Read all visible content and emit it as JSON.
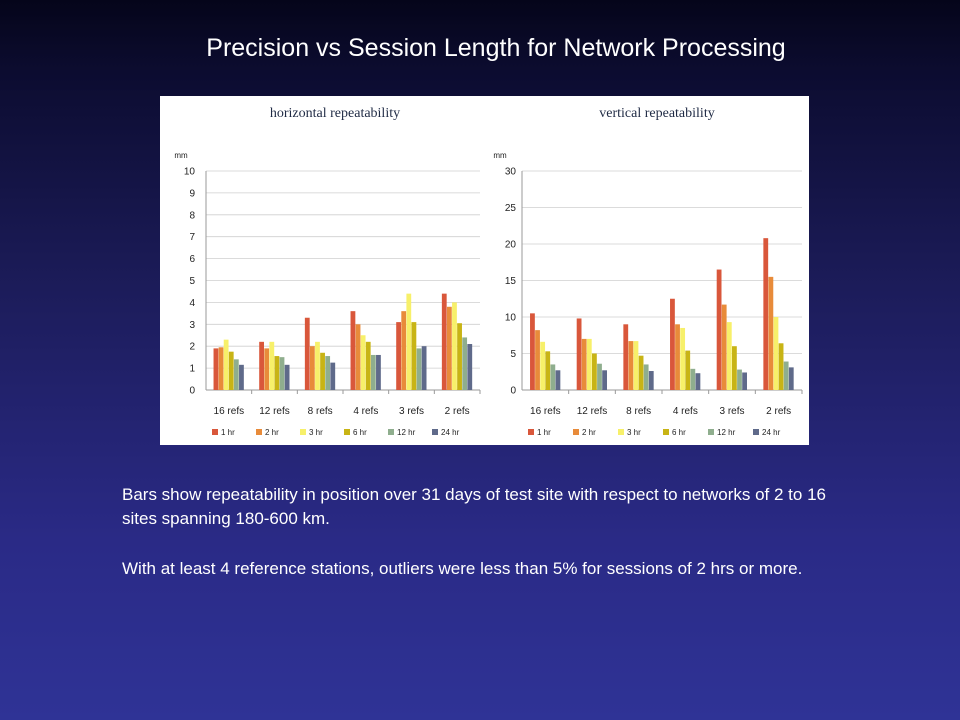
{
  "slide": {
    "title": "Precision vs Session Length for Network Processing",
    "paragraphs": [
      "Bars show repeatability in position over 31 days of  test site with respect to networks of 2 to 16 sites spanning 180-600 km.",
      "With at least 4 reference stations, outliers were less than 5% for sessions of 2 hrs or more."
    ]
  },
  "chart_data": [
    {
      "type": "bar",
      "title": "horizontal repeatability",
      "ylabel": "mm",
      "ylim": [
        0,
        10
      ],
      "yticks": [
        0,
        1,
        2,
        3,
        4,
        5,
        6,
        7,
        8,
        9,
        10
      ],
      "categories": [
        "16 refs",
        "12 refs",
        "8 refs",
        "4 refs",
        "3 refs",
        "2 refs"
      ],
      "legend_position": "bottom",
      "grid": true,
      "series": [
        {
          "name": "1 hr",
          "color": "#d9573b",
          "values": [
            1.9,
            2.2,
            3.3,
            3.6,
            3.1,
            4.4
          ]
        },
        {
          "name": "2 hr",
          "color": "#e88b3a",
          "values": [
            1.95,
            1.9,
            2.0,
            3.0,
            3.6,
            3.8
          ]
        },
        {
          "name": "3 hr",
          "color": "#f7f06a",
          "values": [
            2.3,
            2.2,
            2.2,
            2.5,
            4.4,
            4.0
          ]
        },
        {
          "name": "6 hr",
          "color": "#c8b415",
          "values": [
            1.75,
            1.55,
            1.7,
            2.2,
            3.1,
            3.05
          ]
        },
        {
          "name": "12 hr",
          "color": "#8fae8e",
          "values": [
            1.4,
            1.5,
            1.55,
            1.6,
            1.9,
            2.4
          ]
        },
        {
          "name": "24 hr",
          "color": "#5f6a8a",
          "values": [
            1.15,
            1.15,
            1.25,
            1.6,
            2.0,
            2.1
          ]
        }
      ]
    },
    {
      "type": "bar",
      "title": "vertical repeatability",
      "ylabel": "mm",
      "ylim": [
        0,
        30
      ],
      "yticks": [
        0,
        5,
        10,
        15,
        20,
        25,
        30
      ],
      "categories": [
        "16 refs",
        "12 refs",
        "8 refs",
        "4 refs",
        "3 refs",
        "2 refs"
      ],
      "legend_position": "bottom",
      "grid": true,
      "series": [
        {
          "name": "1 hr",
          "color": "#d9573b",
          "values": [
            10.5,
            9.8,
            9.0,
            12.5,
            16.5,
            20.8
          ]
        },
        {
          "name": "2 hr",
          "color": "#e88b3a",
          "values": [
            8.2,
            7.0,
            6.7,
            9.0,
            11.7,
            15.5
          ]
        },
        {
          "name": "3 hr",
          "color": "#f7f06a",
          "values": [
            6.6,
            7.0,
            6.7,
            8.5,
            9.3,
            10.0
          ]
        },
        {
          "name": "6 hr",
          "color": "#c8b415",
          "values": [
            5.3,
            5.0,
            4.7,
            5.4,
            6.0,
            6.4
          ]
        },
        {
          "name": "12 hr",
          "color": "#8fae8e",
          "values": [
            3.5,
            3.6,
            3.5,
            2.9,
            2.8,
            3.9
          ]
        },
        {
          "name": "24 hr",
          "color": "#5f6a8a",
          "values": [
            2.7,
            2.7,
            2.6,
            2.3,
            2.4,
            3.1
          ]
        }
      ]
    }
  ]
}
